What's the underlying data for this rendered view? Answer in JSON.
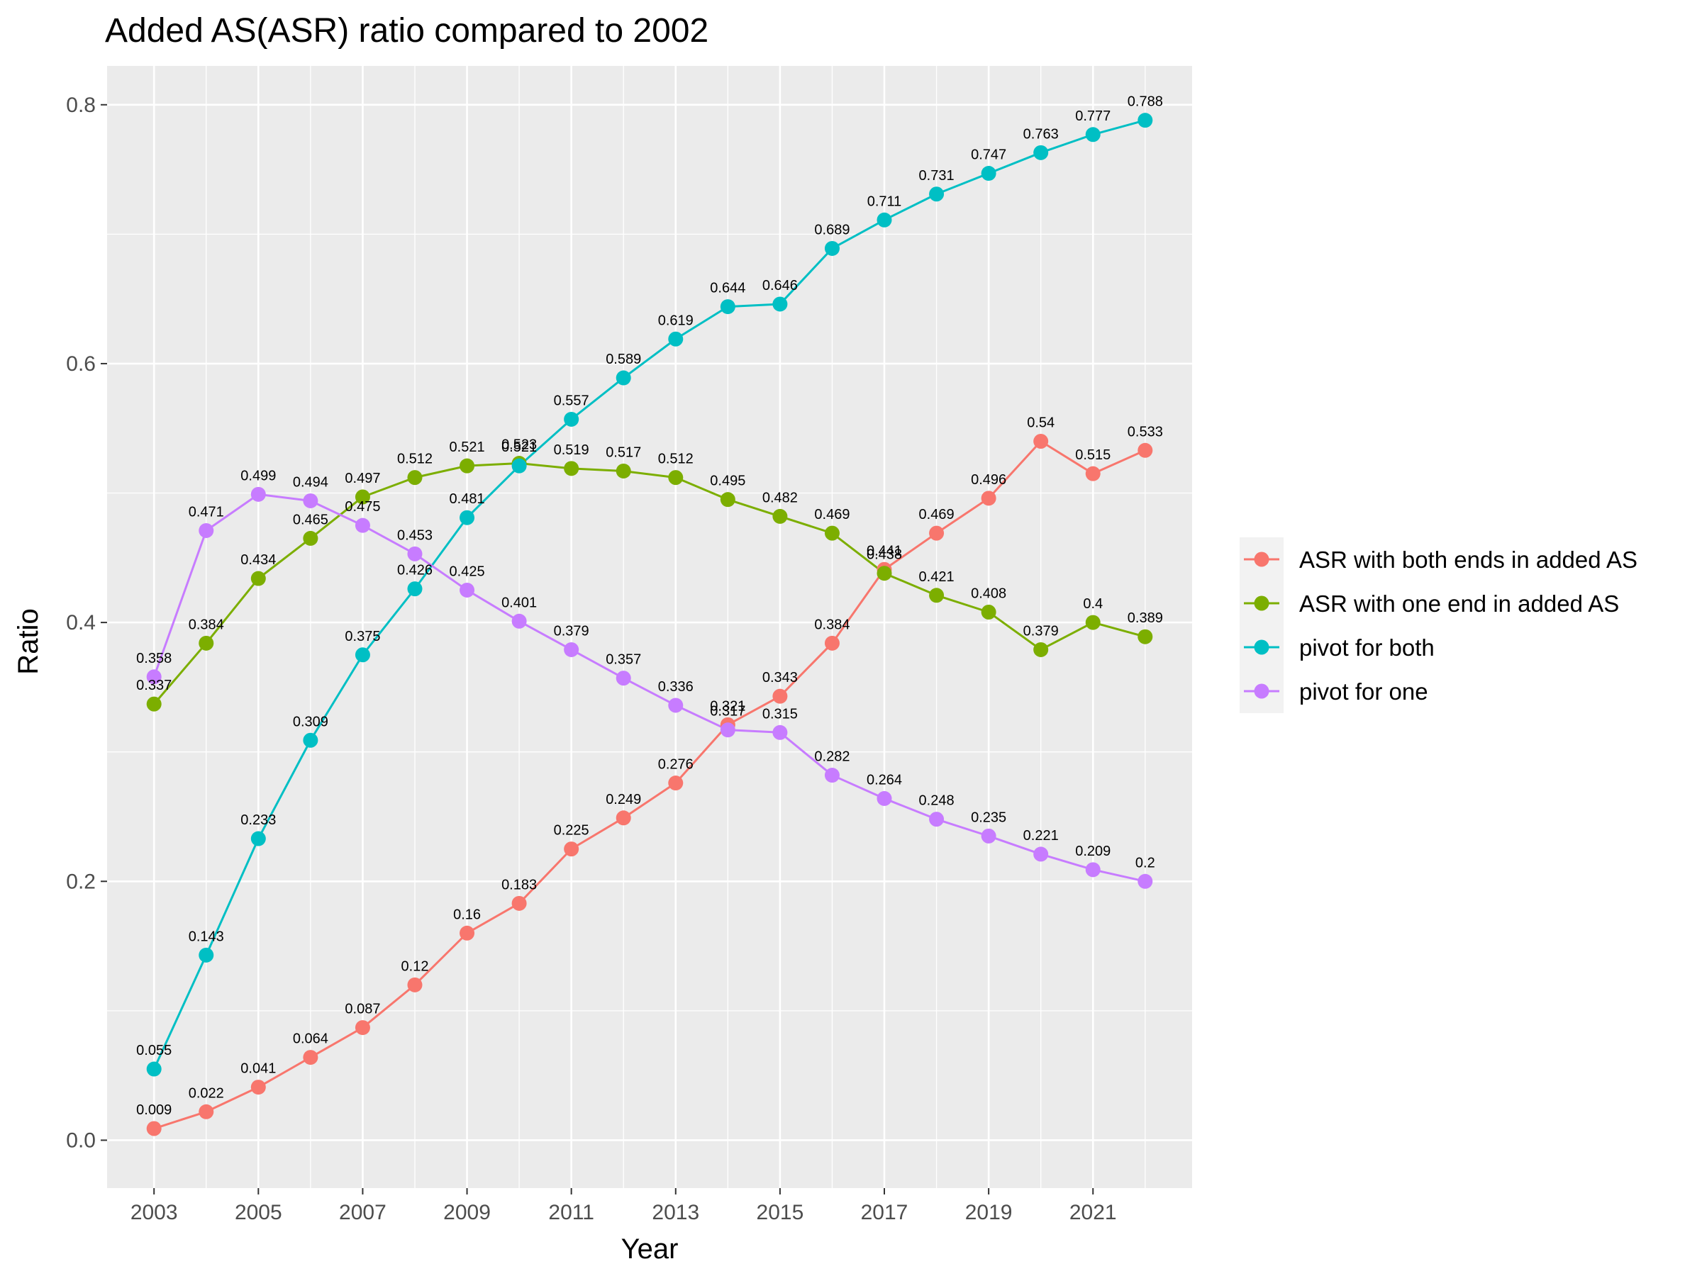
{
  "chart_data": {
    "type": "line",
    "title": "Added AS(ASR) ratio compared to 2002",
    "xlabel": "Year",
    "ylabel": "Ratio",
    "x": [
      2003,
      2004,
      2005,
      2006,
      2007,
      2008,
      2009,
      2010,
      2011,
      2012,
      2013,
      2014,
      2015,
      2016,
      2017,
      2018,
      2019,
      2020,
      2021,
      2022
    ],
    "x_ticks": [
      "2003",
      "2005",
      "2007",
      "2009",
      "2011",
      "2013",
      "2015",
      "2017",
      "2019",
      "2021"
    ],
    "y_ticks": [
      "0.0",
      "0.2",
      "0.4",
      "0.6",
      "0.8"
    ],
    "xlim": [
      2002.1,
      2022.9
    ],
    "ylim": [
      -0.037,
      0.83
    ],
    "grid": true,
    "legend_position": "right",
    "series": [
      {
        "name": "ASR with both ends in added AS",
        "color": "#F8766D",
        "values": [
          0.009,
          0.022,
          0.041,
          0.064,
          0.087,
          0.12,
          0.16,
          0.183,
          0.225,
          0.249,
          0.276,
          0.321,
          0.343,
          0.384,
          0.441,
          0.469,
          0.496,
          0.54,
          0.515,
          0.533
        ],
        "labels": [
          "0.009",
          "0.022",
          "0.041",
          "0.064",
          "0.087",
          "0.12",
          "0.16",
          "0.183",
          "0.225",
          "0.249",
          "0.276",
          "0.321",
          "0.343",
          "0.384",
          "0.441",
          "0.469",
          "0.496",
          "0.54",
          "0.515",
          "0.533"
        ]
      },
      {
        "name": "ASR with one end in added AS",
        "color": "#7CAE00",
        "values": [
          0.337,
          0.384,
          0.434,
          0.465,
          0.497,
          0.512,
          0.521,
          0.523,
          0.519,
          0.517,
          0.512,
          0.495,
          0.482,
          0.469,
          0.438,
          0.421,
          0.408,
          0.379,
          0.4,
          0.389
        ],
        "labels": [
          "0.337",
          "0.384",
          "0.434",
          "0.465",
          "0.497",
          "0.512",
          "0.521",
          "0.523",
          "0.519",
          "0.517",
          "0.512",
          "0.495",
          "0.482",
          "0.469",
          "0.438",
          "0.421",
          "0.408",
          "0.379",
          "0.4",
          "0.389"
        ]
      },
      {
        "name": "pivot for both",
        "color": "#00BFC4",
        "values": [
          0.055,
          0.143,
          0.233,
          0.309,
          0.375,
          0.426,
          0.481,
          0.521,
          0.557,
          0.589,
          0.619,
          0.644,
          0.646,
          0.689,
          0.711,
          0.731,
          0.747,
          0.763,
          0.777,
          0.788
        ],
        "labels": [
          "0.055",
          "0.143",
          "0.233",
          "0.309",
          "0.375",
          "0.426",
          "0.481",
          "0.521",
          "0.557",
          "0.589",
          "0.619",
          "0.644",
          "0.646",
          "0.689",
          "0.711",
          "0.731",
          "0.747",
          "0.763",
          "0.777",
          "0.788"
        ]
      },
      {
        "name": "pivot for one",
        "color": "#C77CFF",
        "values": [
          0.358,
          0.471,
          0.499,
          0.494,
          0.475,
          0.453,
          0.425,
          0.401,
          0.379,
          0.357,
          0.336,
          0.317,
          0.315,
          0.282,
          0.264,
          0.248,
          0.235,
          0.221,
          0.209,
          0.2
        ],
        "labels": [
          "0.358",
          "0.471",
          "0.499",
          "0.494",
          "0.475",
          "0.453",
          "0.425",
          "0.401",
          "0.379",
          "0.357",
          "0.336",
          "0.317",
          "0.315",
          "0.282",
          "0.264",
          "0.248",
          "0.235",
          "0.221",
          "0.209",
          "0.2"
        ]
      }
    ]
  },
  "colors": {
    "panel_background": "#EBEBEB",
    "grid_line": "#FFFFFF",
    "legend_key_background": "#F2F2F2",
    "tick_text": "#4D4D4D",
    "tick_mark": "#333333"
  }
}
